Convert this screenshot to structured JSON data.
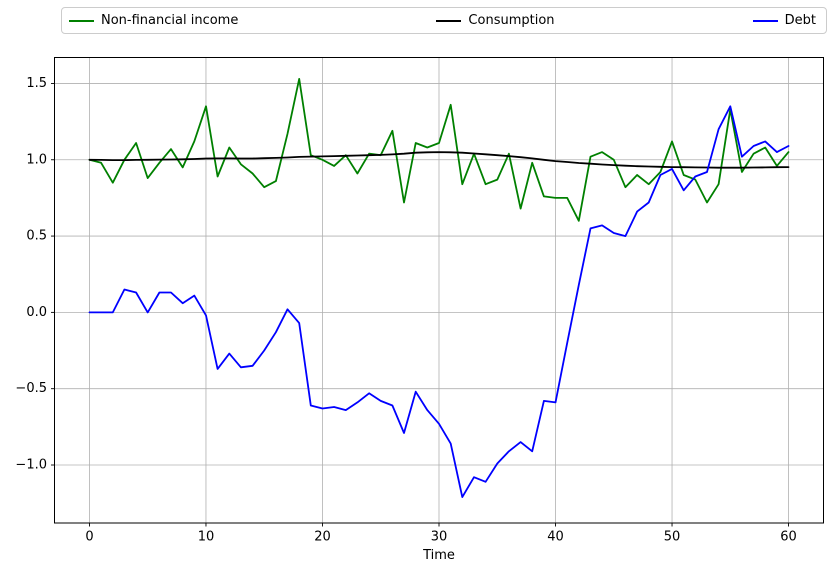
{
  "legend": {
    "items": [
      {
        "label": "Non-financial income",
        "color": "#008000"
      },
      {
        "label": "Consumption",
        "color": "#000000"
      },
      {
        "label": "Debt",
        "color": "#0000ff"
      }
    ]
  },
  "colors": {
    "grid": "#b0b0b0",
    "spine": "#000000",
    "background": "#ffffff",
    "legend_border": "#cccccc"
  },
  "chart_data": {
    "type": "line",
    "title": "",
    "xlabel": "Time",
    "ylabel": "",
    "grid": true,
    "legend_position": "top-expand",
    "xlim": [
      -3,
      63
    ],
    "ylim": [
      -1.38,
      1.67
    ],
    "xticks": [
      0,
      10,
      20,
      30,
      40,
      50,
      60
    ],
    "xtick_labels": [
      "0",
      "10",
      "20",
      "30",
      "40",
      "50",
      "60"
    ],
    "yticks": [
      1.5,
      1.0,
      0.5,
      0.0,
      -0.5,
      -1.0
    ],
    "ytick_labels": [
      "1.5",
      "1.0",
      "0.5",
      "0.0",
      "−0.5",
      "−1.0"
    ],
    "x": [
      0,
      1,
      2,
      3,
      4,
      5,
      6,
      7,
      8,
      9,
      10,
      11,
      12,
      13,
      14,
      15,
      16,
      17,
      18,
      19,
      20,
      21,
      22,
      23,
      24,
      25,
      26,
      27,
      28,
      29,
      30,
      31,
      32,
      33,
      34,
      35,
      36,
      37,
      38,
      39,
      40,
      41,
      42,
      43,
      44,
      45,
      46,
      47,
      48,
      49,
      50,
      51,
      52,
      53,
      54,
      55,
      56,
      57,
      58,
      59,
      60
    ],
    "series": [
      {
        "name": "Non-financial income",
        "color": "#008000",
        "values": [
          1.0,
          0.98,
          0.85,
          1.0,
          1.11,
          0.88,
          0.98,
          1.07,
          0.95,
          1.12,
          1.35,
          0.89,
          1.08,
          0.97,
          0.91,
          0.82,
          0.86,
          1.17,
          1.53,
          1.03,
          1.0,
          0.96,
          1.03,
          0.91,
          1.04,
          1.03,
          1.19,
          0.72,
          1.11,
          1.08,
          1.11,
          1.36,
          0.84,
          1.04,
          0.84,
          0.87,
          1.04,
          0.68,
          0.98,
          0.76,
          0.75,
          0.75,
          0.6,
          1.02,
          1.05,
          1.0,
          0.82,
          0.9,
          0.84,
          0.92,
          1.12,
          0.9,
          0.87,
          0.72,
          0.84,
          1.33,
          0.92,
          1.04,
          1.08,
          0.96,
          1.05
        ]
      },
      {
        "name": "Consumption",
        "color": "#000000",
        "values": [
          1.0,
          0.999,
          0.998,
          0.998,
          0.999,
          1.0,
          1.001,
          1.002,
          1.003,
          1.005,
          1.008,
          1.009,
          1.009,
          1.008,
          1.008,
          1.01,
          1.012,
          1.015,
          1.019,
          1.021,
          1.022,
          1.024,
          1.026,
          1.028,
          1.03,
          1.032,
          1.035,
          1.04,
          1.046,
          1.049,
          1.05,
          1.049,
          1.046,
          1.041,
          1.036,
          1.03,
          1.024,
          1.017,
          1.009,
          1.0,
          0.991,
          0.985,
          0.979,
          0.974,
          0.969,
          0.965,
          0.961,
          0.958,
          0.956,
          0.954,
          0.952,
          0.951,
          0.95,
          0.949,
          0.948,
          0.948,
          0.948,
          0.949,
          0.95,
          0.951,
          0.952
        ]
      },
      {
        "name": "Debt",
        "color": "#0000ff",
        "values": [
          0.0,
          0.0,
          0.0,
          0.15,
          0.13,
          0.0,
          0.13,
          0.13,
          0.06,
          0.11,
          -0.02,
          -0.37,
          -0.27,
          -0.36,
          -0.35,
          -0.25,
          -0.13,
          0.02,
          -0.07,
          -0.61,
          -0.63,
          -0.62,
          -0.64,
          -0.59,
          -0.53,
          -0.58,
          -0.61,
          -0.79,
          -0.52,
          -0.64,
          -0.73,
          -0.86,
          -1.21,
          -1.08,
          -1.11,
          -0.99,
          -0.91,
          -0.85,
          -0.91,
          -0.58,
          -0.59,
          -0.2,
          0.18,
          0.55,
          0.57,
          0.52,
          0.5,
          0.66,
          0.72,
          0.9,
          0.94,
          0.8,
          0.89,
          0.92,
          1.2,
          1.35,
          1.02,
          1.09,
          1.12,
          1.05,
          1.09
        ]
      }
    ]
  }
}
